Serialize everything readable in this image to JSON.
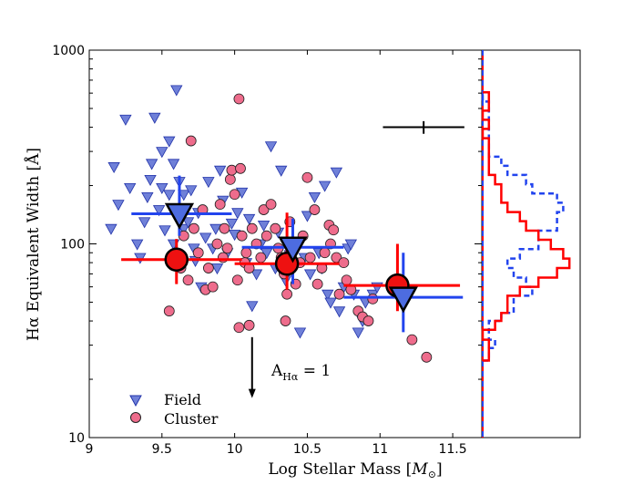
{
  "chart_data": {
    "type": "scatter",
    "xlabel_main": "Log Stellar Mass [",
    "xlabel_symbol": "M",
    "xlabel_sub": "⊙",
    "xlabel_end": "]",
    "ylabel": "Hα Equivalent Width [Å]",
    "xlim": [
      9.0,
      11.7
    ],
    "ylim_log": [
      10,
      1000
    ],
    "x_ticks": [
      9,
      9.5,
      10,
      10.5,
      11,
      11.5
    ],
    "x_tick_labels": [
      "9",
      "9.5",
      "10",
      "10.5",
      "11",
      "11.5"
    ],
    "y_ticks": [
      10,
      100,
      1000
    ],
    "y_tick_labels": [
      "10",
      "100",
      "1000"
    ],
    "colors": {
      "field_fill": "#6f80d8",
      "field_stroke": "#2233aa",
      "cluster_fill": "#ee6c8c",
      "cluster_stroke": "#222222",
      "red": "#ff0000",
      "blue": "#2244ee",
      "big_field_fill": "#4d6ce0",
      "big_cluster_fill": "#ee1111"
    },
    "legend": [
      {
        "name": "Field",
        "marker": "triangle"
      },
      {
        "name": "Cluster",
        "marker": "circle"
      }
    ],
    "annotation": {
      "arrow_x": 10.12,
      "arrow_y_top": 33,
      "arrow_y_bottom": 16,
      "label_main": "A",
      "label_sub": "Hα",
      "label_end": " = 1"
    },
    "error_cross": {
      "x_lo": 11.02,
      "x_hi": 11.58,
      "x": 11.3,
      "y": 400,
      "y_lo": 370,
      "y_hi": 430
    },
    "series": [
      {
        "name": "Field",
        "points": [
          [
            9.15,
            120
          ],
          [
            9.17,
            250
          ],
          [
            9.2,
            160
          ],
          [
            9.25,
            440
          ],
          [
            9.28,
            195
          ],
          [
            9.33,
            100
          ],
          [
            9.35,
            85
          ],
          [
            9.38,
            130
          ],
          [
            9.4,
            175
          ],
          [
            9.42,
            215
          ],
          [
            9.43,
            260
          ],
          [
            9.45,
            450
          ],
          [
            9.48,
            150
          ],
          [
            9.5,
            195
          ],
          [
            9.5,
            300
          ],
          [
            9.52,
            118
          ],
          [
            9.55,
            180
          ],
          [
            9.55,
            340
          ],
          [
            9.58,
            260
          ],
          [
            9.58,
            100
          ],
          [
            9.6,
            625
          ],
          [
            9.62,
            210
          ],
          [
            9.65,
            120
          ],
          [
            9.65,
            180
          ],
          [
            9.68,
            130
          ],
          [
            9.7,
            190
          ],
          [
            9.72,
            95
          ],
          [
            9.73,
            82
          ],
          [
            9.75,
            145
          ],
          [
            9.77,
            60
          ],
          [
            9.8,
            108
          ],
          [
            9.82,
            210
          ],
          [
            9.85,
            95
          ],
          [
            9.87,
            120
          ],
          [
            9.88,
            75
          ],
          [
            9.9,
            240
          ],
          [
            9.92,
            168
          ],
          [
            9.95,
            90
          ],
          [
            9.98,
            128
          ],
          [
            10.0,
            112
          ],
          [
            10.02,
            145
          ],
          [
            10.05,
            185
          ],
          [
            10.08,
            80
          ],
          [
            10.1,
            135
          ],
          [
            10.12,
            48
          ],
          [
            10.15,
            70
          ],
          [
            10.18,
            100
          ],
          [
            10.2,
            125
          ],
          [
            10.22,
            90
          ],
          [
            10.25,
            320
          ],
          [
            10.28,
            75
          ],
          [
            10.3,
            115
          ],
          [
            10.32,
            240
          ],
          [
            10.35,
            65
          ],
          [
            10.38,
            88
          ],
          [
            10.4,
            100
          ],
          [
            10.42,
            95
          ],
          [
            10.45,
            35
          ],
          [
            10.48,
            85
          ],
          [
            10.5,
            140
          ],
          [
            10.52,
            70
          ],
          [
            10.55,
            175
          ],
          [
            10.58,
            90
          ],
          [
            10.6,
            75
          ],
          [
            10.62,
            200
          ],
          [
            10.64,
            55
          ],
          [
            10.66,
            50
          ],
          [
            10.7,
            235
          ],
          [
            10.72,
            45
          ],
          [
            10.75,
            60
          ],
          [
            10.78,
            95
          ],
          [
            10.8,
            100
          ],
          [
            10.82,
            55
          ],
          [
            10.85,
            35
          ],
          [
            10.88,
            40
          ],
          [
            10.9,
            50
          ],
          [
            10.95,
            55
          ],
          [
            10.98,
            60
          ]
        ]
      },
      {
        "name": "Cluster",
        "points": [
          [
            9.55,
            45
          ],
          [
            9.6,
            80
          ],
          [
            9.63,
            75
          ],
          [
            9.65,
            110
          ],
          [
            9.68,
            65
          ],
          [
            9.7,
            340
          ],
          [
            9.72,
            120
          ],
          [
            9.75,
            90
          ],
          [
            9.78,
            150
          ],
          [
            9.8,
            58
          ],
          [
            9.82,
            75
          ],
          [
            9.85,
            60
          ],
          [
            9.88,
            100
          ],
          [
            9.9,
            160
          ],
          [
            9.92,
            85
          ],
          [
            9.93,
            120
          ],
          [
            9.95,
            95
          ],
          [
            9.97,
            215
          ],
          [
            9.98,
            240
          ],
          [
            10.0,
            180
          ],
          [
            10.02,
            65
          ],
          [
            10.03,
            560
          ],
          [
            10.04,
            245
          ],
          [
            10.05,
            110
          ],
          [
            10.07,
            80
          ],
          [
            10.08,
            90
          ],
          [
            10.1,
            75
          ],
          [
            10.12,
            120
          ],
          [
            10.15,
            100
          ],
          [
            10.18,
            85
          ],
          [
            10.2,
            150
          ],
          [
            10.22,
            110
          ],
          [
            10.25,
            160
          ],
          [
            10.28,
            120
          ],
          [
            10.3,
            95
          ],
          [
            10.32,
            85
          ],
          [
            10.34,
            70
          ],
          [
            10.36,
            55
          ],
          [
            10.38,
            130
          ],
          [
            10.4,
            78
          ],
          [
            10.42,
            62
          ],
          [
            10.45,
            80
          ],
          [
            10.47,
            110
          ],
          [
            10.5,
            220
          ],
          [
            10.52,
            85
          ],
          [
            10.55,
            150
          ],
          [
            10.57,
            62
          ],
          [
            10.6,
            75
          ],
          [
            10.62,
            90
          ],
          [
            10.65,
            125
          ],
          [
            10.66,
            100
          ],
          [
            10.68,
            118
          ],
          [
            10.7,
            85
          ],
          [
            10.72,
            55
          ],
          [
            10.75,
            80
          ],
          [
            10.77,
            65
          ],
          [
            10.8,
            58
          ],
          [
            10.85,
            45
          ],
          [
            10.88,
            42
          ],
          [
            10.92,
            40
          ],
          [
            10.95,
            52
          ],
          [
            11.22,
            32
          ],
          [
            11.32,
            26
          ],
          [
            10.03,
            37
          ],
          [
            10.1,
            38
          ],
          [
            10.35,
            40
          ]
        ]
      }
    ],
    "binned": {
      "cluster": [
        {
          "x": 9.6,
          "y": 83,
          "x_lo": 9.22,
          "x_hi": 10.05,
          "y_lo": 62,
          "y_hi": 106
        },
        {
          "x": 10.36,
          "y": 79,
          "x_lo": 10.0,
          "x_hi": 10.72,
          "y_lo": 58,
          "y_hi": 145
        },
        {
          "x": 11.12,
          "y": 61,
          "x_lo": 10.75,
          "x_hi": 11.55,
          "y_lo": 45,
          "y_hi": 100
        }
      ],
      "field": [
        {
          "x": 9.62,
          "y": 143,
          "x_lo": 9.29,
          "x_hi": 9.98,
          "y_lo": 110,
          "y_hi": 225
        },
        {
          "x": 10.4,
          "y": 96,
          "x_lo": 10.05,
          "x_hi": 10.75,
          "y_lo": 62,
          "y_hi": 135
        },
        {
          "x": 11.16,
          "y": 53,
          "x_lo": 10.75,
          "x_hi": 11.57,
          "y_lo": 35,
          "y_hi": 90
        }
      ]
    },
    "histogram": {
      "bin_edges": [
        25,
        29,
        32,
        36,
        40,
        44,
        49,
        54,
        60,
        67,
        75,
        84,
        94,
        105,
        117,
        131,
        146,
        163,
        182,
        203,
        227,
        253,
        282,
        315,
        351,
        392,
        437,
        487,
        543,
        606
      ],
      "cluster_counts": [
        1,
        1,
        0,
        2,
        3,
        4,
        4,
        6,
        9,
        12,
        14,
        13,
        11,
        9,
        7,
        6,
        4,
        3,
        3,
        2,
        1,
        1,
        1,
        1,
        0,
        1,
        0,
        1,
        1
      ],
      "field_counts": [
        1,
        2,
        1,
        1,
        3,
        5,
        5,
        8,
        7,
        5,
        4,
        6,
        9,
        9,
        12,
        12,
        13,
        12,
        8,
        7,
        4,
        3,
        1,
        1,
        1,
        1,
        1,
        1,
        0
      ],
      "max_count": 15
    }
  }
}
